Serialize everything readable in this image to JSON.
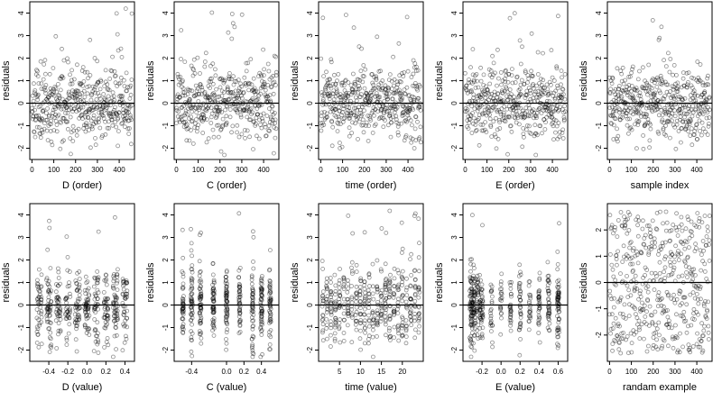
{
  "chart_data": [
    {
      "type": "scatter",
      "xlabel": "D (order)",
      "ylabel": "residuals",
      "xlim": [
        -10,
        470
      ],
      "ylim": [
        -2.5,
        4.5
      ],
      "xticks": [
        "0",
        "100",
        "200",
        "300",
        "400"
      ],
      "yticks": [
        "-2",
        "-1",
        "0",
        "1",
        "2",
        "3",
        "4"
      ],
      "reference_line_y": 0,
      "gen": "order",
      "seed": 11
    },
    {
      "type": "scatter",
      "xlabel": "C (order)",
      "ylabel": "residuals",
      "xlim": [
        -10,
        470
      ],
      "ylim": [
        -2.5,
        4.5
      ],
      "xticks": [
        "0",
        "100",
        "200",
        "300",
        "400"
      ],
      "yticks": [
        "-2",
        "-1",
        "0",
        "1",
        "2",
        "3",
        "4"
      ],
      "reference_line_y": 0,
      "gen": "order",
      "seed": 23
    },
    {
      "type": "scatter",
      "xlabel": "time (order)",
      "ylabel": "residuals",
      "xlim": [
        -10,
        470
      ],
      "ylim": [
        -2.5,
        4.5
      ],
      "xticks": [
        "0",
        "100",
        "200",
        "300",
        "400"
      ],
      "yticks": [
        "-2",
        "-1",
        "0",
        "1",
        "2",
        "3",
        "4"
      ],
      "reference_line_y": 0,
      "gen": "order",
      "seed": 37
    },
    {
      "type": "scatter",
      "xlabel": "E (order)",
      "ylabel": "residuals",
      "xlim": [
        -10,
        470
      ],
      "ylim": [
        -2.5,
        4.5
      ],
      "xticks": [
        "0",
        "100",
        "200",
        "300",
        "400"
      ],
      "yticks": [
        "-2",
        "-1",
        "0",
        "1",
        "2",
        "3",
        "4"
      ],
      "reference_line_y": 0,
      "gen": "order",
      "seed": 41
    },
    {
      "type": "scatter",
      "xlabel": "sample index",
      "ylabel": "residuals",
      "xlim": [
        -10,
        470
      ],
      "ylim": [
        -2.5,
        4.5
      ],
      "xticks": [
        "0",
        "100",
        "200",
        "300",
        "400"
      ],
      "yticks": [
        "-2",
        "-1",
        "0",
        "1",
        "2",
        "3",
        "4"
      ],
      "reference_line_y": 0,
      "gen": "order",
      "seed": 53
    },
    {
      "type": "scatter",
      "xlabel": "D (value)",
      "ylabel": "residuals",
      "xlim": [
        -0.6,
        0.5
      ],
      "ylim": [
        -2.5,
        4.5
      ],
      "xticks": [
        "-0.4",
        "-0.2",
        "0.0",
        "0.2",
        "0.4"
      ],
      "yticks": [
        "-2",
        "-1",
        "0",
        "1",
        "2",
        "3",
        "4"
      ],
      "reference_line_y": 0,
      "gen": "cluster",
      "centers": [
        -0.5,
        -0.4,
        -0.3,
        -0.2,
        -0.1,
        0.0,
        0.1,
        0.2,
        0.3,
        0.4
      ],
      "spread": 0.025,
      "seed": 61
    },
    {
      "type": "scatter",
      "xlabel": "C (value)",
      "ylabel": "residuals",
      "xlim": [
        -0.6,
        0.6
      ],
      "ylim": [
        -2.5,
        4.5
      ],
      "xticks": [
        "-0.4",
        "0.0",
        "0.2",
        "0.4"
      ],
      "yticks": [
        "-2",
        "-1",
        "0",
        "1",
        "2",
        "3",
        "4"
      ],
      "reference_line_y": 0,
      "gen": "cluster",
      "centers": [
        -0.5,
        -0.4,
        -0.3,
        -0.15,
        0.0,
        0.15,
        0.3,
        0.4,
        0.5
      ],
      "spread": 0.01,
      "seed": 71
    },
    {
      "type": "scatter",
      "xlabel": "time (value)",
      "ylabel": "residuals",
      "xlim": [
        0,
        25
      ],
      "ylim": [
        -2.5,
        4.5
      ],
      "xticks": [
        "5",
        "10",
        "15",
        "20"
      ],
      "yticks": [
        "-2",
        "-1",
        "0",
        "1",
        "2",
        "3",
        "4"
      ],
      "reference_line_y": 0,
      "gen": "cluster",
      "centers": [
        1,
        2,
        3,
        4,
        5,
        6,
        7,
        8,
        9,
        10,
        11,
        12,
        13,
        14,
        15,
        16,
        17,
        18,
        19,
        20,
        21,
        22,
        23,
        24
      ],
      "spread": 0.15,
      "seed": 83
    },
    {
      "type": "scatter",
      "xlabel": "E (value)",
      "ylabel": "residuals",
      "xlim": [
        -0.4,
        0.7
      ],
      "ylim": [
        -2.5,
        4.5
      ],
      "xticks": [
        "-0.2",
        "0.0",
        "0.2",
        "0.4",
        "0.6"
      ],
      "yticks": [
        "-2",
        "-1",
        "0",
        "1",
        "2",
        "3",
        "4"
      ],
      "reference_line_y": 0,
      "gen": "cluster",
      "centers": [
        -0.32,
        -0.31,
        -0.3,
        -0.28,
        -0.25,
        -0.22,
        -0.2,
        -0.1,
        0.0,
        0.1,
        0.2,
        0.3,
        0.4,
        0.5,
        0.6,
        0.6
      ],
      "spread": 0.01,
      "seed": 97
    },
    {
      "type": "scatter",
      "xlabel": "randam example",
      "ylabel": "residuals",
      "xlim": [
        -10,
        470
      ],
      "ylim": [
        -3.0,
        3.0
      ],
      "xticks": [
        "0",
        "100",
        "200",
        "300",
        "400"
      ],
      "yticks": [
        "-2",
        "-1",
        "0",
        "1",
        "2"
      ],
      "reference_line_y": 0,
      "gen": "uniform",
      "seed": 101
    }
  ]
}
